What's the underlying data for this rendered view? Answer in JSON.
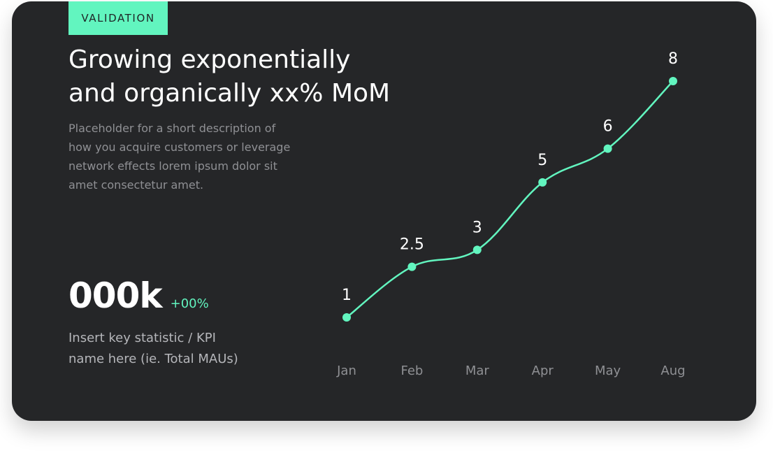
{
  "tag": "VALIDATION",
  "title_line1": "Growing exponentially",
  "title_line2": "and organically xx% MoM",
  "description": "Placeholder for a short description of how you acquire customers or leverage network effects lorem ipsum dolor sit amet consectetur amet.",
  "kpi": {
    "value": "000k",
    "delta": "+00%",
    "label": "Insert key statistic / KPI name here (ie. Total MAUs)"
  },
  "colors": {
    "accent": "#62f5bf",
    "background": "#252628",
    "text": "#ffffff",
    "muted": "#8f9094"
  },
  "chart_data": {
    "type": "line",
    "categories": [
      "Jan",
      "Feb",
      "Mar",
      "Apr",
      "May",
      "Aug"
    ],
    "values": [
      1,
      2.5,
      3,
      5,
      6,
      8
    ],
    "data_labels": [
      "1",
      "2.5",
      "3",
      "5",
      "6",
      "8"
    ],
    "ylim": [
      1,
      8
    ],
    "grid": false,
    "legend": "none",
    "smooth": true
  }
}
